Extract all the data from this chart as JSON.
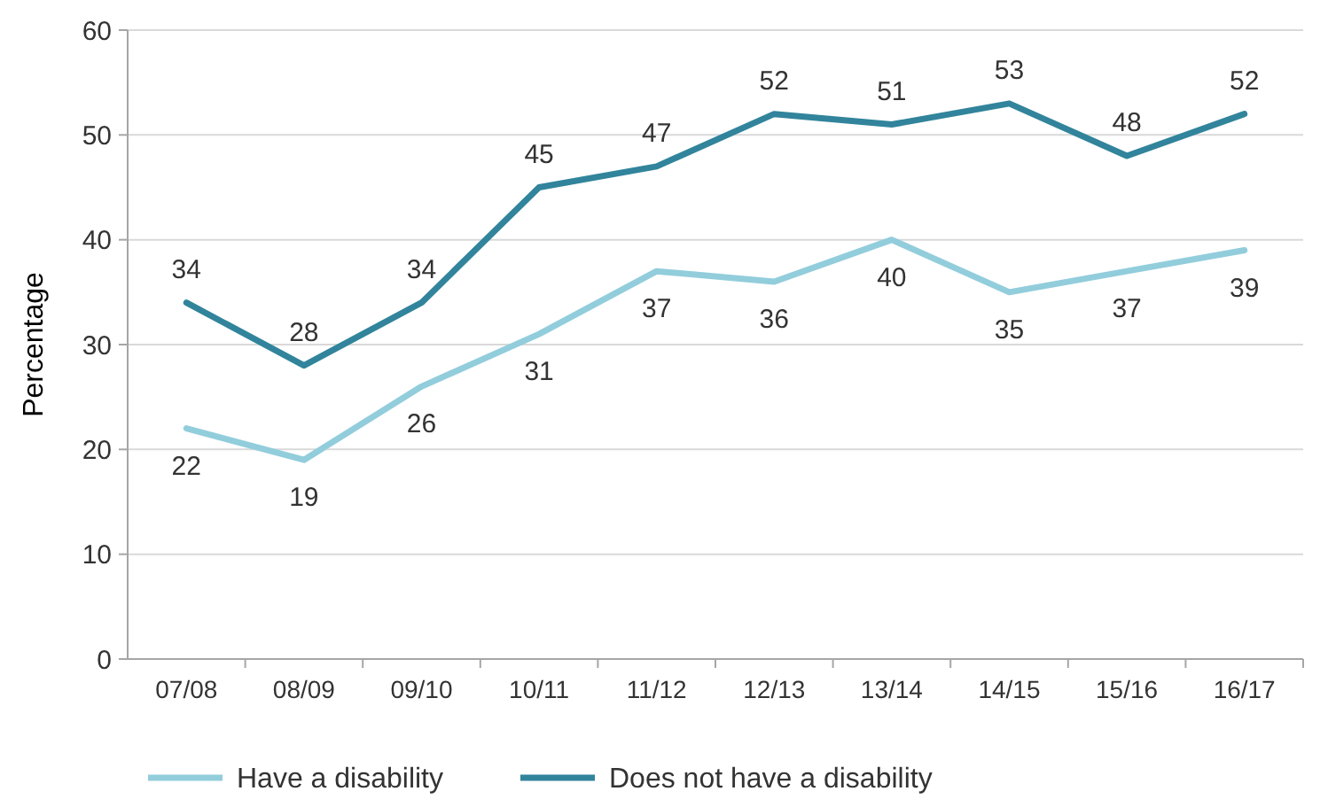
{
  "chart_data": {
    "type": "line",
    "ylabel": "Percentage",
    "categories": [
      "07/08",
      "08/09",
      "09/10",
      "10/11",
      "11/12",
      "12/13",
      "13/14",
      "14/15",
      "15/16",
      "16/17"
    ],
    "series": [
      {
        "name": "Have a disability",
        "color": "#92cddc",
        "values": [
          22,
          19,
          26,
          31,
          37,
          36,
          40,
          35,
          37,
          39
        ]
      },
      {
        "name": "Does not have a disability",
        "color": "#31849b",
        "values": [
          34,
          28,
          34,
          45,
          47,
          52,
          51,
          53,
          48,
          52
        ]
      }
    ],
    "ylim": [
      0,
      60
    ],
    "yticks": [
      0,
      10,
      20,
      30,
      40,
      50,
      60
    ],
    "grid": "y",
    "legend": "bottom",
    "data_labels": true,
    "marker": "none",
    "line_style": "solid"
  }
}
